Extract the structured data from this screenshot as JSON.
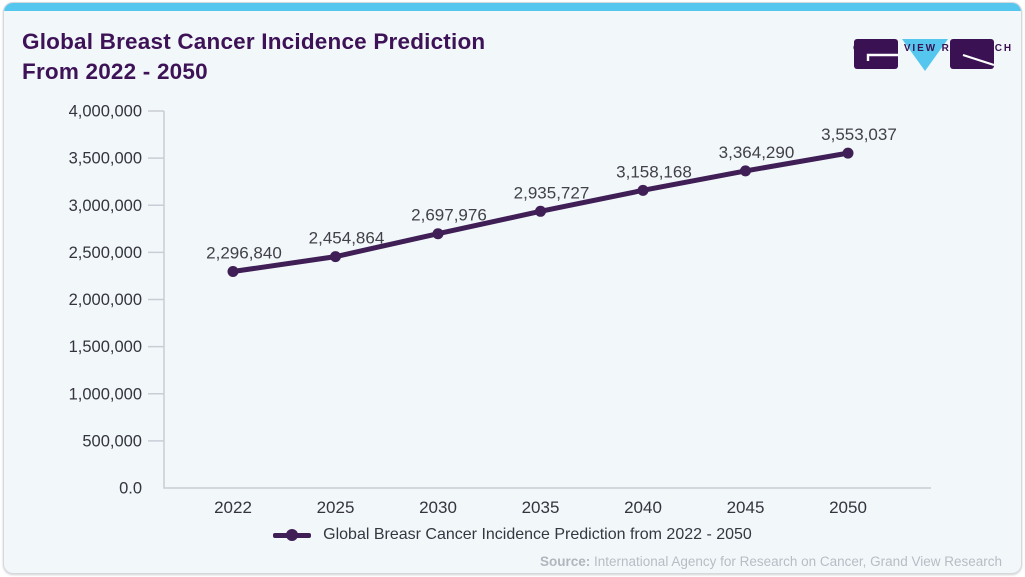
{
  "accent_color": "#55c6ee",
  "header": {
    "title_line1": "Global Breast Cancer Incidence Prediction",
    "title_line2": "From 2022 - 2050",
    "title_color": "#3d1257"
  },
  "logo": {
    "text": "GRAND VIEW RESEARCH",
    "purple": "#3a1253",
    "blue": "#55c6ee"
  },
  "chart_data": {
    "type": "line",
    "title": "Global Breast Cancer Incidence Prediction From 2022 - 2050",
    "categories": [
      "2022",
      "2025",
      "2030",
      "2035",
      "2040",
      "2045",
      "2050"
    ],
    "series": [
      {
        "name": "Global Breasr Cancer Incidence Prediction from 2022 - 2050",
        "values": [
          2296840,
          2454864,
          2697976,
          2935727,
          3158168,
          3364290,
          3553037
        ],
        "point_labels": [
          "2,296,840",
          "2,454,864",
          "2,697,976",
          "2,935,727",
          "3,158,168",
          "3,364,290",
          "3,553,037"
        ],
        "color": "#3f1f55"
      }
    ],
    "ylim": [
      0,
      4000000
    ],
    "y_ticks": [
      0,
      500000,
      1000000,
      1500000,
      2000000,
      2500000,
      3000000,
      3500000,
      4000000
    ],
    "y_tick_labels": [
      "0.0",
      "500,000",
      "1,000,000",
      "1,500,000",
      "2,000,000",
      "2,500,000",
      "3,000,000",
      "3,500,000",
      "4,000,000"
    ],
    "xlabel": "",
    "ylabel": "",
    "grid": false,
    "legend_position": "bottom",
    "axis_color": "#c9cdd5",
    "tick_label_color": "#34343e",
    "point_label_color": "#414149"
  },
  "legend": {
    "label": "Global Breasr Cancer Incidence Prediction from 2022 - 2050"
  },
  "source": {
    "prefix": "Source:",
    "text": " International Agency for Research on Cancer, Grand View Research"
  }
}
